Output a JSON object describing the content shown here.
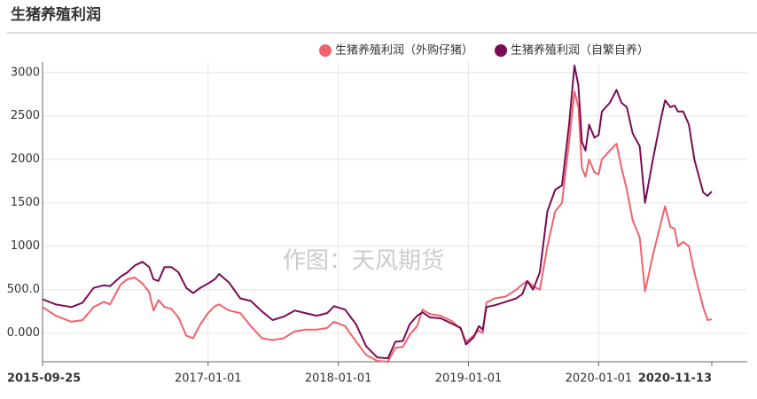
{
  "chart_data": {
    "type": "line",
    "title": "生猪养殖利润",
    "watermark": "作图：天风期货",
    "legend_position": "top-right",
    "grid": true,
    "x": [
      "2015-09-25",
      "2015-11-01",
      "2015-12-15",
      "2016-01-15",
      "2016-02-15",
      "2016-03-15",
      "2016-04-01",
      "2016-05-01",
      "2016-05-20",
      "2016-06-10",
      "2016-07-01",
      "2016-07-20",
      "2016-08-01",
      "2016-08-15",
      "2016-09-01",
      "2016-09-20",
      "2016-10-10",
      "2016-11-01",
      "2016-11-20",
      "2016-12-10",
      "2017-01-01",
      "2017-01-20",
      "2017-02-01",
      "2017-03-01",
      "2017-04-01",
      "2017-05-01",
      "2017-06-01",
      "2017-07-01",
      "2017-08-01",
      "2017-09-01",
      "2017-10-01",
      "2017-11-01",
      "2017-12-01",
      "2017-12-20",
      "2018-01-20",
      "2018-02-20",
      "2018-03-20",
      "2018-04-20",
      "2018-05-20",
      "2018-06-10",
      "2018-07-01",
      "2018-07-20",
      "2018-08-10",
      "2018-08-25",
      "2018-09-15",
      "2018-10-15",
      "2018-11-15",
      "2018-12-10",
      "2018-12-25",
      "2019-01-15",
      "2019-01-30",
      "2019-02-10",
      "2019-02-20",
      "2019-03-15",
      "2019-04-15",
      "2019-05-15",
      "2019-06-01",
      "2019-06-15",
      "2019-07-01",
      "2019-07-20",
      "2019-08-10",
      "2019-09-01",
      "2019-09-20",
      "2019-10-10",
      "2019-10-25",
      "2019-11-05",
      "2019-11-15",
      "2019-11-25",
      "2019-12-05",
      "2019-12-20",
      "2020-01-01",
      "2020-01-10",
      "2020-02-01",
      "2020-02-20",
      "2020-03-05",
      "2020-03-20",
      "2020-04-05",
      "2020-04-25",
      "2020-05-10",
      "2020-06-01",
      "2020-06-25",
      "2020-07-05",
      "2020-07-20",
      "2020-08-01",
      "2020-08-10",
      "2020-08-25",
      "2020-09-10",
      "2020-09-25",
      "2020-10-20",
      "2020-11-01",
      "2020-11-13"
    ],
    "series": [
      {
        "name": "生猪养殖利润（外购仔猪）",
        "color": "#f0626b",
        "values": [
          300,
          200,
          130,
          150,
          300,
          360,
          330,
          560,
          620,
          640,
          570,
          470,
          260,
          380,
          300,
          280,
          180,
          -30,
          -60,
          100,
          230,
          310,
          330,
          260,
          230,
          80,
          -60,
          -80,
          -60,
          20,
          40,
          40,
          60,
          130,
          80,
          -100,
          -250,
          -320,
          -330,
          -170,
          -160,
          -20,
          80,
          270,
          220,
          200,
          140,
          50,
          -100,
          -30,
          30,
          0,
          350,
          400,
          420,
          500,
          560,
          600,
          540,
          500,
          1000,
          1400,
          1500,
          2200,
          2780,
          2600,
          1900,
          1800,
          2000,
          1850,
          1830,
          2000,
          2100,
          2180,
          1900,
          1650,
          1300,
          1100,
          480,
          900,
          1300,
          1460,
          1220,
          1200,
          1000,
          1050,
          1000,
          700,
          300,
          150,
          160
        ]
      },
      {
        "name": "生猪养殖利润（自繁自养）",
        "color": "#7a0b55",
        "values": [
          390,
          330,
          300,
          350,
          520,
          550,
          540,
          650,
          700,
          780,
          820,
          760,
          620,
          600,
          760,
          760,
          700,
          520,
          460,
          520,
          570,
          620,
          680,
          580,
          400,
          370,
          250,
          150,
          190,
          260,
          230,
          200,
          230,
          310,
          270,
          100,
          -150,
          -280,
          -290,
          -100,
          -90,
          100,
          200,
          240,
          180,
          170,
          110,
          60,
          -130,
          -50,
          80,
          40,
          300,
          320,
          360,
          400,
          450,
          600,
          500,
          700,
          1400,
          1650,
          1700,
          2400,
          3080,
          2850,
          2200,
          2100,
          2400,
          2250,
          2280,
          2550,
          2650,
          2800,
          2650,
          2600,
          2300,
          2150,
          1500,
          2000,
          2500,
          2680,
          2600,
          2620,
          2550,
          2550,
          2400,
          2000,
          1620,
          1580,
          1630
        ]
      }
    ],
    "xlim": [
      "2015-09-25",
      "2020-11-13"
    ],
    "xticks": [
      "2015-09-25",
      "2017-01-01",
      "2018-01-01",
      "2019-01-01",
      "2020-01-01",
      "2020-11-13"
    ],
    "ylim": [
      -330,
      3120
    ],
    "yticks": [
      {
        "value": 0,
        "label": "0.000"
      },
      {
        "value": 500,
        "label": "500.0"
      },
      1000,
      1500,
      2000,
      2500,
      3000
    ]
  }
}
